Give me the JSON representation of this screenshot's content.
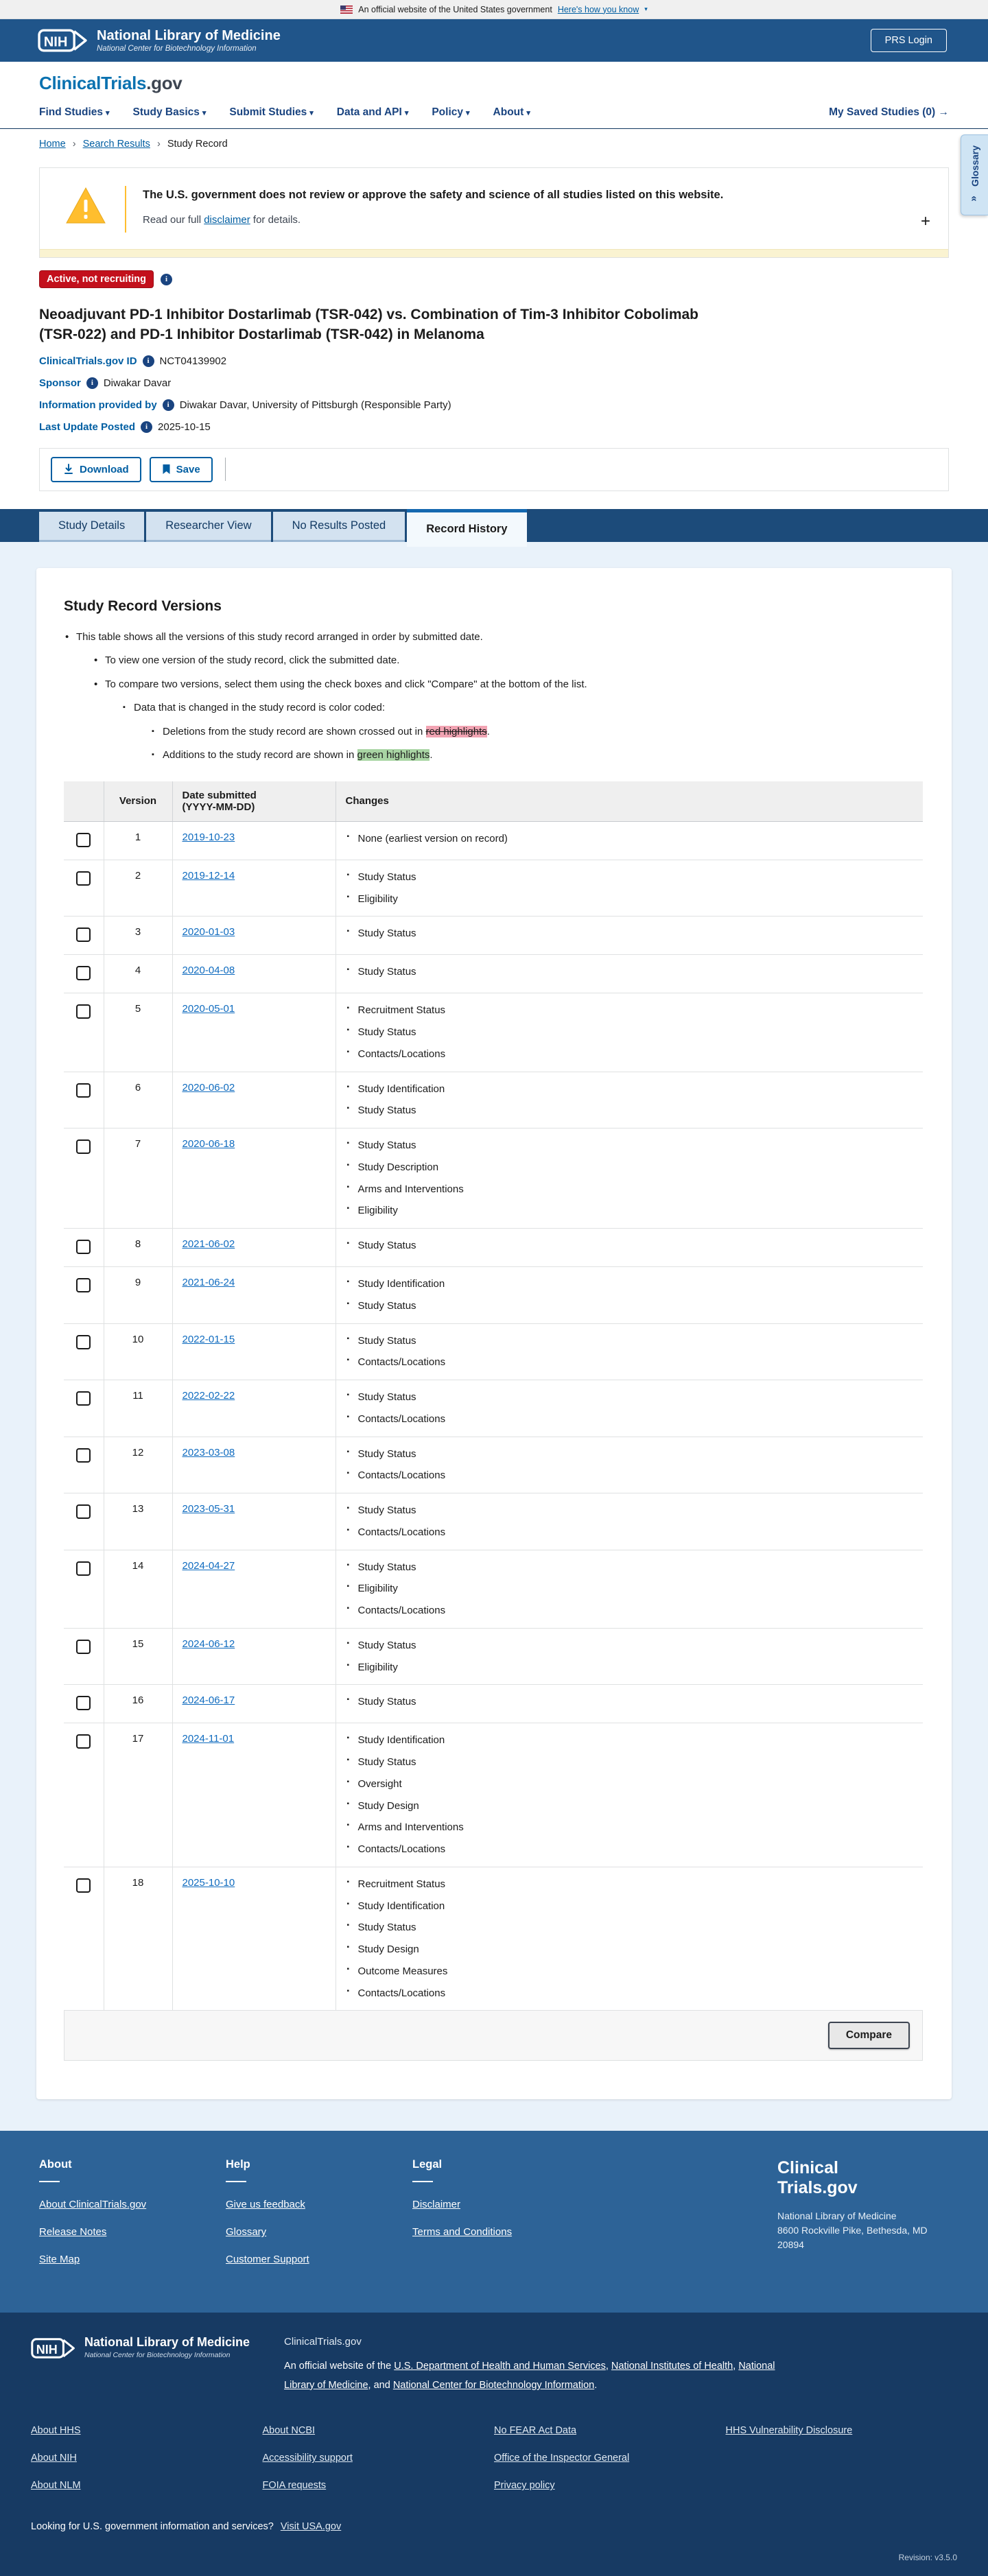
{
  "banner": {
    "official_text": "An official website of the United States government",
    "how_link": "Here's how you know",
    "caret": "▾"
  },
  "header": {
    "logo_acronym": "NIH",
    "org": "National Library of Medicine",
    "suborg": "National Center for Biotechnology Information",
    "prs_login": "PRS Login"
  },
  "sitenav": {
    "brand_main": "ClinicalTrials",
    "brand_suffix": ".gov",
    "items": [
      {
        "label": "Find Studies"
      },
      {
        "label": "Study Basics"
      },
      {
        "label": "Submit Studies"
      },
      {
        "label": "Data and API"
      },
      {
        "label": "Policy"
      },
      {
        "label": "About"
      }
    ],
    "caret": "▾",
    "saved_label": "My Saved Studies (0)",
    "saved_arrow": "→"
  },
  "breadcrumb": {
    "home": "Home",
    "search_results": "Search Results",
    "current": "Study Record",
    "sep": "›"
  },
  "glossary_tab": {
    "label": "Glossary",
    "chevron": "«"
  },
  "warning": {
    "headline": "The U.S. government does not review or approve the safety and science of all studies listed on this website.",
    "body_prefix": "Read our full ",
    "disclaimer_link": "disclaimer",
    "body_suffix": " for details.",
    "expand": "+"
  },
  "study": {
    "status": "Active, not recruiting",
    "title": "Neoadjuvant PD-1 Inhibitor Dostarlimab (TSR-042) vs. Combination of Tim-3 Inhibitor Cobolimab (TSR-022) and PD-1 Inhibitor Dostarlimab (TSR-042) in Melanoma",
    "fields": [
      {
        "label": "ClinicalTrials.gov ID",
        "value": "NCT04139902"
      },
      {
        "label": "Sponsor",
        "value": "Diwakar Davar"
      },
      {
        "label": "Information provided by",
        "value": "Diwakar Davar, University of Pittsburgh (Responsible Party)"
      },
      {
        "label": "Last Update Posted",
        "value": "2025-10-15"
      }
    ]
  },
  "actions": {
    "download": "Download",
    "save": "Save"
  },
  "tabs": [
    {
      "label": "Study Details",
      "active": false
    },
    {
      "label": "Researcher View",
      "active": false
    },
    {
      "label": "No Results Posted",
      "active": false
    },
    {
      "label": "Record History",
      "active": true
    }
  ],
  "record_history": {
    "heading": "Study Record Versions",
    "intro": {
      "b1": "This table shows all the versions of this study record arranged in order by submitted date.",
      "b1a": "To view one version of the study record, click the submitted date.",
      "b1b": "To compare two versions, select them using the check boxes and click \"Compare\" at the bottom of the list.",
      "b2": "Data that is changed in the study record is color coded:",
      "red_prefix": "Deletions from the study record are shown crossed out in ",
      "red_highlight": "red highlights",
      "red_suffix": ".",
      "green_prefix": "Additions to the study record are shown in ",
      "green_highlight": "green highlights",
      "green_suffix": "."
    },
    "table": {
      "headers": {
        "version": "Version",
        "date_line1": "Date submitted",
        "date_line2": "(YYYY-MM-DD)",
        "changes": "Changes"
      },
      "rows": [
        {
          "version": "1",
          "date": "2019-10-23",
          "changes": [
            "None (earliest version on record)"
          ]
        },
        {
          "version": "2",
          "date": "2019-12-14",
          "changes": [
            "Study Status",
            "Eligibility"
          ]
        },
        {
          "version": "3",
          "date": "2020-01-03",
          "changes": [
            "Study Status"
          ]
        },
        {
          "version": "4",
          "date": "2020-04-08",
          "changes": [
            "Study Status"
          ]
        },
        {
          "version": "5",
          "date": "2020-05-01",
          "changes": [
            "Recruitment Status",
            "Study Status",
            "Contacts/Locations"
          ]
        },
        {
          "version": "6",
          "date": "2020-06-02",
          "changes": [
            "Study Identification",
            "Study Status"
          ]
        },
        {
          "version": "7",
          "date": "2020-06-18",
          "changes": [
            "Study Status",
            "Study Description",
            "Arms and Interventions",
            "Eligibility"
          ]
        },
        {
          "version": "8",
          "date": "2021-06-02",
          "changes": [
            "Study Status"
          ]
        },
        {
          "version": "9",
          "date": "2021-06-24",
          "changes": [
            "Study Identification",
            "Study Status"
          ]
        },
        {
          "version": "10",
          "date": "2022-01-15",
          "changes": [
            "Study Status",
            "Contacts/Locations"
          ]
        },
        {
          "version": "11",
          "date": "2022-02-22",
          "changes": [
            "Study Status",
            "Contacts/Locations"
          ]
        },
        {
          "version": "12",
          "date": "2023-03-08",
          "changes": [
            "Study Status",
            "Contacts/Locations"
          ]
        },
        {
          "version": "13",
          "date": "2023-05-31",
          "changes": [
            "Study Status",
            "Contacts/Locations"
          ]
        },
        {
          "version": "14",
          "date": "2024-04-27",
          "changes": [
            "Study Status",
            "Eligibility",
            "Contacts/Locations"
          ]
        },
        {
          "version": "15",
          "date": "2024-06-12",
          "changes": [
            "Study Status",
            "Eligibility"
          ]
        },
        {
          "version": "16",
          "date": "2024-06-17",
          "changes": [
            "Study Status"
          ]
        },
        {
          "version": "17",
          "date": "2024-11-01",
          "changes": [
            "Study Identification",
            "Study Status",
            "Oversight",
            "Study Design",
            "Arms and Interventions",
            "Contacts/Locations"
          ]
        },
        {
          "version": "18",
          "date": "2025-10-10",
          "changes": [
            "Recruitment Status",
            "Study Identification",
            "Study Status",
            "Study Design",
            "Outcome Measures",
            "Contacts/Locations"
          ]
        }
      ]
    },
    "compare_label": "Compare"
  },
  "footer_mid": {
    "columns": [
      {
        "title": "About",
        "links": [
          "About ClinicalTrials.gov",
          "Release Notes",
          "Site Map"
        ]
      },
      {
        "title": "Help",
        "links": [
          "Give us feedback",
          "Glossary",
          "Customer Support"
        ]
      },
      {
        "title": "Legal",
        "links": [
          "Disclaimer",
          "Terms and Conditions"
        ]
      }
    ],
    "brand_line1": "Clinical",
    "brand_line2": "Trials.gov",
    "address_lines": [
      "National Library of Medicine",
      "8600 Rockville Pike, Bethesda, MD",
      "20894"
    ]
  },
  "footer_dark": {
    "org": "National Library of Medicine",
    "suborg": "National Center for Biotechnology Information",
    "brand": "ClinicalTrials.gov",
    "sentence_prefix": "An official website of the ",
    "link1": "U.S. Department of Health and Human Services",
    "sep1": ", ",
    "link2": "National Institutes of Health",
    "sep2": ", ",
    "link3": "National Library of Medicine",
    "sep3": ", and ",
    "link4": "National Center for Biotechnology Information",
    "period": ".",
    "columns": [
      [
        "About HHS",
        "About NIH",
        "About NLM"
      ],
      [
        "About NCBI",
        "Accessibility support",
        "FOIA requests"
      ],
      [
        "No FEAR Act Data",
        "Office of the Inspector General",
        "Privacy policy"
      ],
      [
        "HHS Vulnerability Disclosure"
      ]
    ],
    "usa_prompt": "Looking for U.S. government information and services?",
    "usa_link": "Visit USA.gov",
    "revision": "Revision: v3.5.0"
  }
}
